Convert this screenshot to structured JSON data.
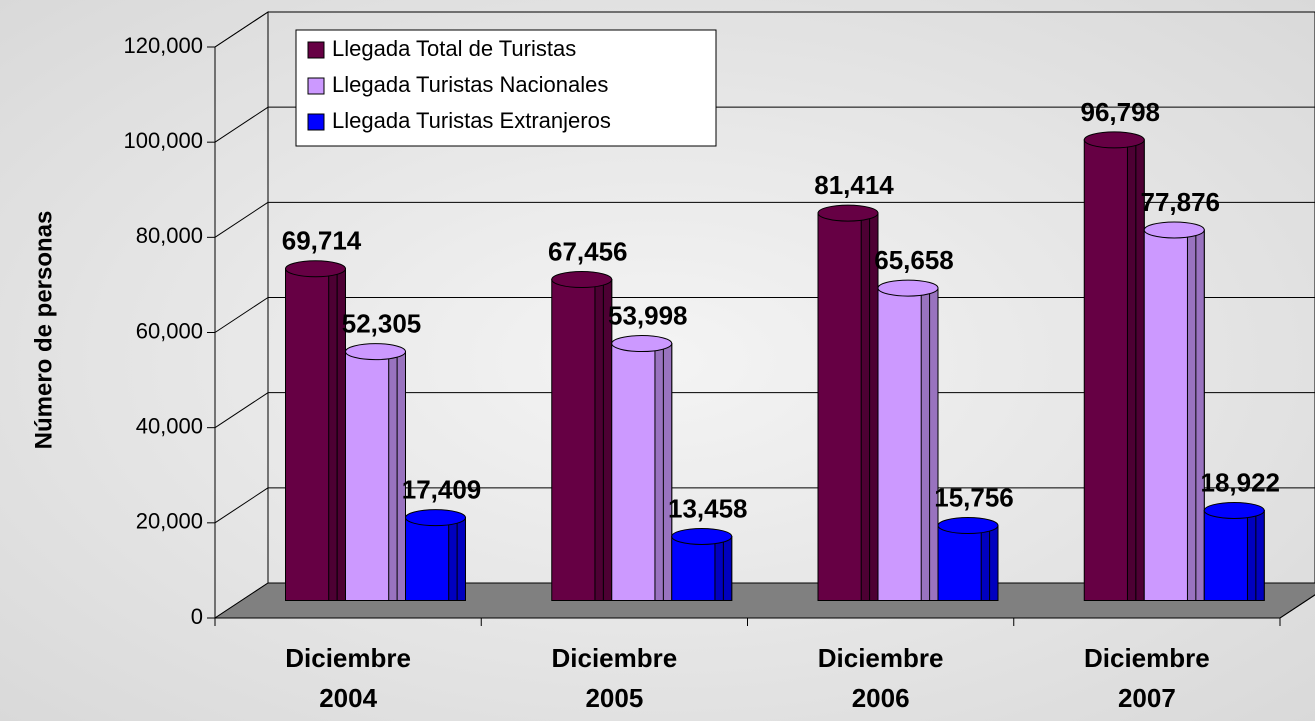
{
  "chart_data": {
    "type": "bar3d",
    "y_label": "Número de personas",
    "categories": [
      "Diciembre 2004",
      "Diciembre 2005",
      "Diciembre 2006",
      "Diciembre 2007"
    ],
    "series": [
      {
        "name": "Llegada Total de Turistas",
        "color": "#660044",
        "values": [
          69714,
          67456,
          81414,
          96798
        ],
        "value_labels": [
          "69,714",
          "67,456",
          "81,414",
          "96,798"
        ]
      },
      {
        "name": "Llegada Turistas Nacionales",
        "color": "#cc99ff",
        "values": [
          52305,
          53998,
          65658,
          77876
        ],
        "value_labels": [
          "52,305",
          "53,998",
          "65,658",
          "77,876"
        ]
      },
      {
        "name": "Llegada Turistas Extranjeros",
        "color": "#0000ff",
        "values": [
          17409,
          13458,
          15756,
          18922
        ],
        "value_labels": [
          "17,409",
          "13,458",
          "15,756",
          "18,922"
        ]
      }
    ],
    "ylim": [
      0,
      120000
    ],
    "yticks": [
      0,
      {
        "value": 20000,
        "label": "20,000"
      },
      {
        "value": 40000,
        "label": "40,000"
      },
      {
        "value": 60000,
        "label": "60,000"
      },
      {
        "value": 80000,
        "label": "80,000"
      },
      {
        "value": 100000,
        "label": "100,000"
      },
      {
        "value": 120000,
        "label": "120,000"
      }
    ],
    "grid": true,
    "legend": "upper left"
  }
}
